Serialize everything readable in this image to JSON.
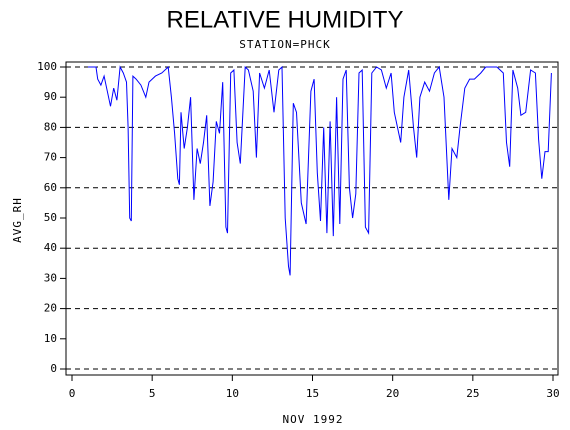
{
  "chart_data": {
    "type": "line",
    "title": "RELATIVE HUMIDITY",
    "subtitle": "STATION=PHCK",
    "xlabel": "NOV 1992",
    "ylabel": "AVG_RH",
    "xlim": [
      0,
      30
    ],
    "xticks": [
      0,
      5,
      10,
      15,
      20,
      25,
      30
    ],
    "ylim": [
      0,
      100
    ],
    "yticks": [
      0,
      10,
      20,
      30,
      40,
      50,
      60,
      70,
      80,
      90,
      100
    ],
    "gridlines": [
      0,
      20,
      40,
      60,
      80,
      100
    ],
    "grid_style": "dashed",
    "series": [
      {
        "color": "#0000ff",
        "x": [
          1.0,
          1.5,
          1.6,
          1.8,
          2.0,
          2.2,
          2.4,
          2.6,
          2.8,
          3.0,
          3.2,
          3.4,
          3.5,
          3.6,
          3.7,
          3.8,
          4.0,
          4.3,
          4.6,
          4.8,
          5.2,
          5.6,
          6.0,
          6.2,
          6.4,
          6.6,
          6.7,
          6.8,
          7.0,
          7.2,
          7.4,
          7.6,
          7.8,
          8.0,
          8.2,
          8.4,
          8.6,
          8.8,
          9.0,
          9.2,
          9.4,
          9.6,
          9.7,
          9.9,
          10.1,
          10.3,
          10.5,
          10.8,
          11.0,
          11.3,
          11.5,
          11.7,
          12.0,
          12.3,
          12.6,
          12.9,
          13.1,
          13.3,
          13.5,
          13.6,
          13.8,
          14.0,
          14.3,
          14.6,
          14.9,
          15.1,
          15.3,
          15.5,
          15.7,
          15.9,
          16.1,
          16.3,
          16.5,
          16.7,
          16.9,
          17.1,
          17.3,
          17.5,
          17.7,
          17.9,
          18.1,
          18.3,
          18.5,
          18.7,
          19.0,
          19.3,
          19.6,
          19.9,
          20.1,
          20.3,
          20.5,
          20.7,
          21.0,
          21.3,
          21.5,
          21.7,
          22.0,
          22.3,
          22.6,
          22.9,
          23.2,
          23.5,
          23.7,
          24.0,
          24.2,
          24.5,
          24.8,
          25.1,
          25.5,
          25.8,
          26.1,
          26.5,
          26.9,
          27.1,
          27.3,
          27.5,
          27.8,
          28.0,
          28.3,
          28.6,
          28.9,
          29.1,
          29.3,
          29.5,
          29.7,
          29.9
        ],
        "values": [
          100,
          100,
          96,
          94,
          97,
          92,
          87,
          93,
          89,
          100,
          98,
          95,
          80,
          50,
          49,
          97,
          96,
          94,
          90,
          95,
          97,
          98,
          100,
          90,
          78,
          63,
          61,
          85,
          73,
          80,
          90,
          56,
          73,
          68,
          75,
          84,
          54,
          62,
          82,
          78,
          95,
          47,
          45,
          98,
          99,
          75,
          68,
          100,
          99,
          92,
          70,
          98,
          93,
          99,
          85,
          99,
          100,
          50,
          34,
          31,
          88,
          85,
          55,
          48,
          92,
          96,
          65,
          49,
          80,
          45,
          82,
          44,
          90,
          48,
          96,
          99,
          60,
          50,
          58,
          98,
          99,
          47,
          45,
          98,
          100,
          99,
          93,
          98,
          85,
          80,
          75,
          90,
          99,
          80,
          70,
          90,
          95,
          92,
          98,
          100,
          90,
          56,
          73,
          70,
          80,
          93,
          96,
          96,
          98,
          100,
          100,
          100,
          98,
          75,
          67,
          99,
          93,
          84,
          85,
          99,
          98,
          76,
          63,
          72,
          72,
          98
        ]
      }
    ]
  }
}
